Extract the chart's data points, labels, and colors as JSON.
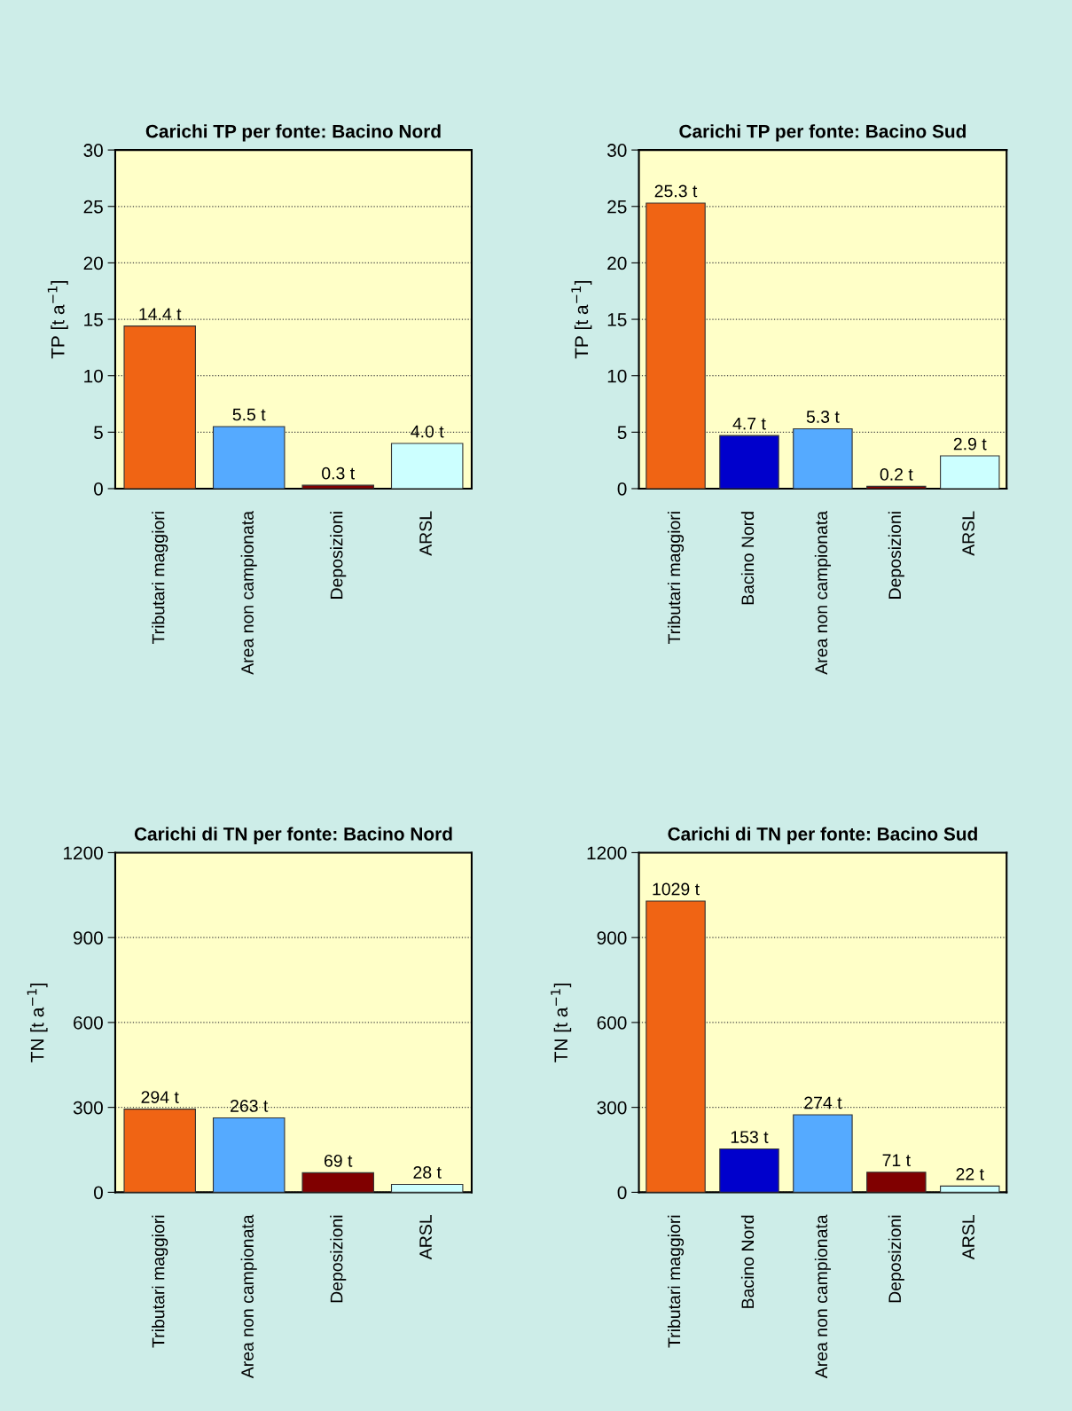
{
  "chart_data": [
    {
      "type": "bar",
      "title": "Carichi TP per fonte: Bacino Nord",
      "ylabel": "TP [t a$^{−1}$]",
      "categories": [
        "Tributari maggiori",
        "Area non campionata",
        "Deposizioni",
        "ARSL"
      ],
      "values": [
        14.4,
        5.5,
        0.3,
        4.0
      ],
      "colors": [
        "#f06414",
        "#55aaff",
        "#800000",
        "#ccffff"
      ],
      "value_labels": [
        "14.4 t",
        "5.5 t",
        "0.3 t",
        "4.0 t"
      ],
      "ylim": [
        0,
        30
      ],
      "yticks": [
        0,
        5,
        10,
        15,
        20,
        25,
        30
      ],
      "grid": "y",
      "legend": false
    },
    {
      "type": "bar",
      "title": "Carichi TP per fonte: Bacino Sud",
      "ylabel": "TP [t a$^{−1}$]",
      "categories": [
        "Tributari maggiori",
        "Bacino Nord",
        "Area non campionata",
        "Deposizioni",
        "ARSL"
      ],
      "values": [
        25.3,
        4.7,
        5.3,
        0.2,
        2.9
      ],
      "colors": [
        "#f06414",
        "#0000cc",
        "#55aaff",
        "#800000",
        "#ccffff"
      ],
      "value_labels": [
        "25.3 t",
        "4.7 t",
        "5.3 t",
        "0.2 t",
        "2.9 t"
      ],
      "ylim": [
        0,
        30
      ],
      "yticks": [
        0,
        5,
        10,
        15,
        20,
        25,
        30
      ],
      "grid": "y",
      "legend": false
    },
    {
      "type": "bar",
      "title": "Carichi di TN per fonte: Bacino Nord",
      "ylabel": "TN [t a$^{−1}$]",
      "categories": [
        "Tributari maggiori",
        "Area non campionata",
        "Deposizioni",
        "ARSL"
      ],
      "values": [
        294,
        263,
        69,
        28
      ],
      "colors": [
        "#f06414",
        "#55aaff",
        "#800000",
        "#ccffff"
      ],
      "value_labels": [
        "294 t",
        "263 t",
        "69 t",
        "28 t"
      ],
      "ylim": [
        0,
        1200
      ],
      "yticks": [
        0,
        300,
        600,
        900,
        1200
      ],
      "grid": "y",
      "legend": false
    },
    {
      "type": "bar",
      "title": "Carichi di TN per fonte: Bacino Sud",
      "ylabel": "TN [t a$^{−1}$]",
      "categories": [
        "Tributari maggiori",
        "Bacino Nord",
        "Area non campionata",
        "Deposizioni",
        "ARSL"
      ],
      "values": [
        1029,
        153,
        274,
        71,
        22
      ],
      "colors": [
        "#f06414",
        "#0000cc",
        "#55aaff",
        "#800000",
        "#ccffff"
      ],
      "value_labels": [
        "1029 t",
        "153 t",
        "274 t",
        "71 t",
        "22 t"
      ],
      "ylim": [
        0,
        1200
      ],
      "yticks": [
        0,
        300,
        600,
        900,
        1200
      ],
      "grid": "y",
      "legend": false
    }
  ]
}
